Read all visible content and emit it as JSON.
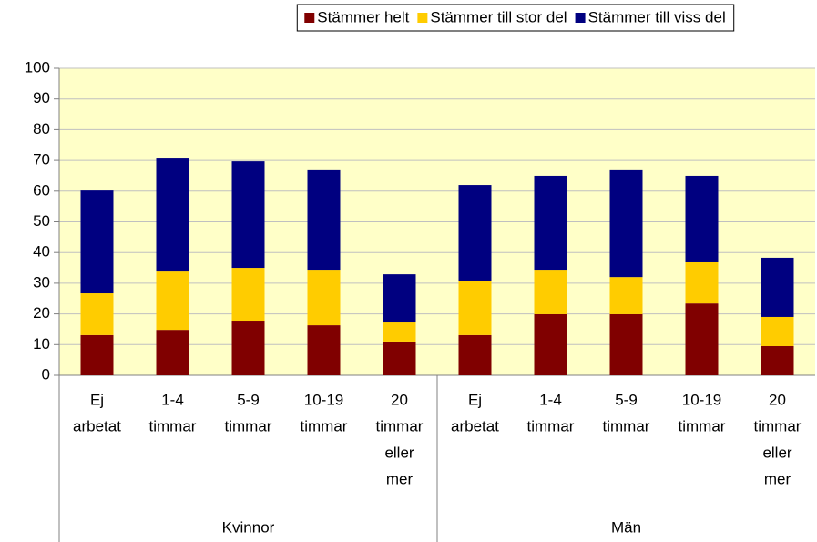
{
  "chart_data": {
    "type": "stacked_bar",
    "categories": [
      [
        "Ej",
        "arbetat"
      ],
      [
        "1-4",
        "timmar"
      ],
      [
        "5-9",
        "timmar"
      ],
      [
        "10-19",
        "timmar"
      ],
      [
        "20",
        "timmar",
        "eller",
        "mer"
      ],
      [
        "Ej",
        "arbetat"
      ],
      [
        "1-4",
        "timmar"
      ],
      [
        "5-9",
        "timmar"
      ],
      [
        "10-19",
        "timmar"
      ],
      [
        "20",
        "timmar",
        "eller",
        "mer"
      ]
    ],
    "groups": [
      {
        "name": "Kvinnor",
        "size": 5
      },
      {
        "name": "Män",
        "size": 5
      }
    ],
    "series": [
      {
        "name": "Stämmer helt",
        "color": "#800000",
        "values": [
          13.1,
          14.8,
          17.8,
          16.3,
          11,
          13.1,
          19.9,
          19.9,
          23.4,
          9.5
        ]
      },
      {
        "name": "Stämmer till stor del",
        "color": "#ffcc00",
        "values": [
          13.6,
          19,
          17.2,
          18.1,
          6.2,
          17.5,
          14.5,
          12.1,
          13.4,
          9.5
        ]
      },
      {
        "name": "Stämmer till viss del",
        "color": "#000080",
        "values": [
          33.5,
          37.1,
          34.7,
          32.4,
          15.7,
          31.4,
          30.6,
          34.8,
          28.2,
          19.3
        ]
      }
    ],
    "ylim": [
      0,
      100
    ],
    "yticks": [
      0,
      10,
      20,
      30,
      40,
      50,
      60,
      70,
      80,
      90,
      100
    ],
    "grid": true,
    "legend": "top"
  }
}
